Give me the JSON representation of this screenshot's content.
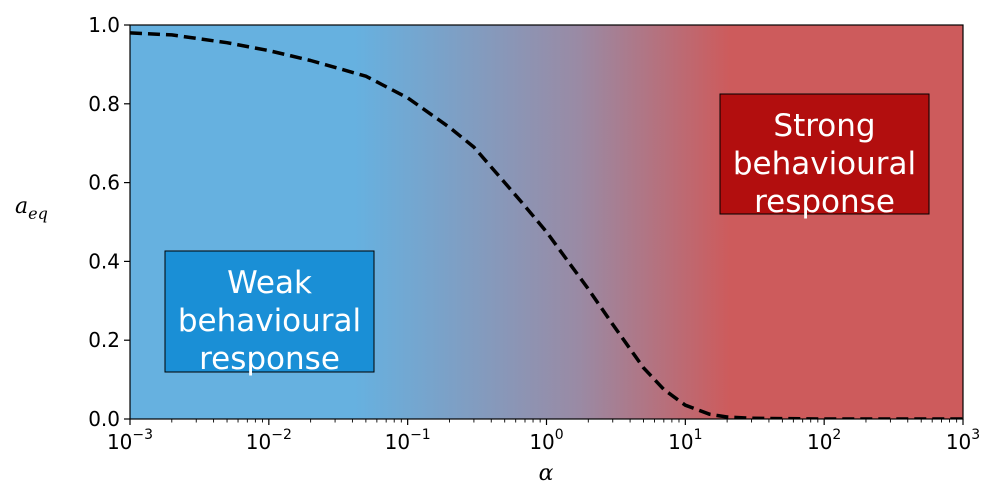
{
  "chart_data": {
    "type": "line",
    "xscale": "log",
    "xlim": [
      0.001,
      1000
    ],
    "ylim": [
      0.0,
      1.0
    ],
    "xlabel": "α",
    "ylabel": {
      "base": "a",
      "subscript": "eq"
    },
    "x_ticks": [
      {
        "exponent": "−3"
      },
      {
        "exponent": "−2"
      },
      {
        "exponent": "−1"
      },
      {
        "exponent": "0"
      },
      {
        "exponent": "1"
      },
      {
        "exponent": "2"
      },
      {
        "exponent": "3"
      }
    ],
    "y_ticks": [
      "0.0",
      "0.2",
      "0.4",
      "0.6",
      "0.8",
      "1.0"
    ],
    "y_tick_values": [
      0.0,
      0.2,
      0.4,
      0.6,
      0.8,
      1.0
    ],
    "x_tick_values": [
      0.001,
      0.01,
      0.1,
      1,
      10,
      100,
      1000
    ],
    "series": [
      {
        "style": "dashed",
        "color": "#000000",
        "x": [
          0.001,
          0.002,
          0.005,
          0.01,
          0.02,
          0.05,
          0.1,
          0.2,
          0.3,
          0.5,
          0.7,
          1,
          1.5,
          2,
          3,
          5,
          7,
          10,
          15,
          20,
          30,
          50,
          100,
          1000
        ],
        "y": [
          0.98,
          0.975,
          0.955,
          0.935,
          0.91,
          0.87,
          0.815,
          0.74,
          0.69,
          0.6,
          0.54,
          0.475,
          0.39,
          0.33,
          0.24,
          0.13,
          0.075,
          0.035,
          0.012,
          0.005,
          0.002,
          0.001,
          0.0,
          0.0
        ]
      }
    ],
    "background_gradient": {
      "low_color": "#66b1e0",
      "high_color": "#cd5b5c"
    },
    "annotations": [
      {
        "lines": [
          "Weak",
          "behavioural",
          "response"
        ],
        "color": "#1a8fd6"
      },
      {
        "lines": [
          "Strong",
          "behavioural",
          "response"
        ],
        "color": "#b20e0e"
      }
    ]
  }
}
